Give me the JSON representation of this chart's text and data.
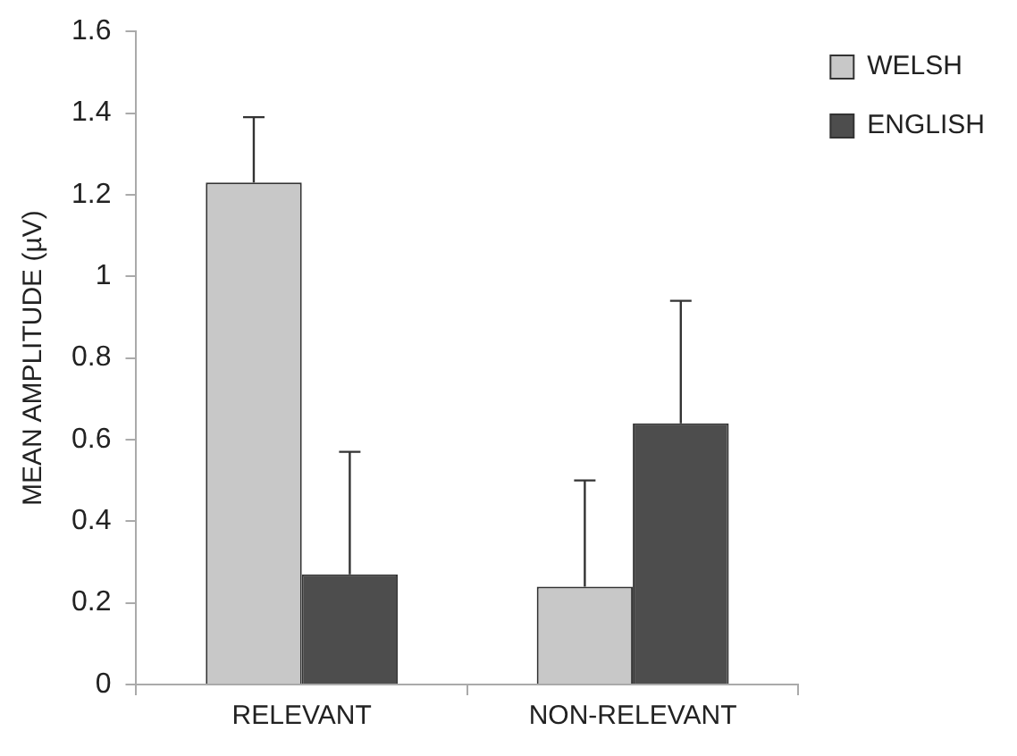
{
  "chart_data": {
    "type": "bar",
    "ylabel": "MEAN AMPLITUDE (µV)",
    "categories": [
      "RELEVANT",
      "NON-RELEVANT"
    ],
    "series": [
      {
        "name": "WELSH",
        "color": "#c8c8c8",
        "values": [
          1.23,
          0.24
        ],
        "errors": [
          [
            1.23,
            1.39
          ],
          [
            0.24,
            0.5
          ]
        ]
      },
      {
        "name": "ENGLISH",
        "color": "#4d4d4d",
        "values": [
          0.27,
          0.64
        ],
        "errors": [
          [
            0.27,
            0.57
          ],
          [
            0.64,
            0.94
          ]
        ]
      }
    ],
    "ylim": [
      0,
      1.6
    ],
    "yticks": [
      0,
      0.2,
      0.4,
      0.6,
      0.8,
      1,
      1.2,
      1.4,
      1.6
    ],
    "grid": false,
    "legend": "top right"
  }
}
